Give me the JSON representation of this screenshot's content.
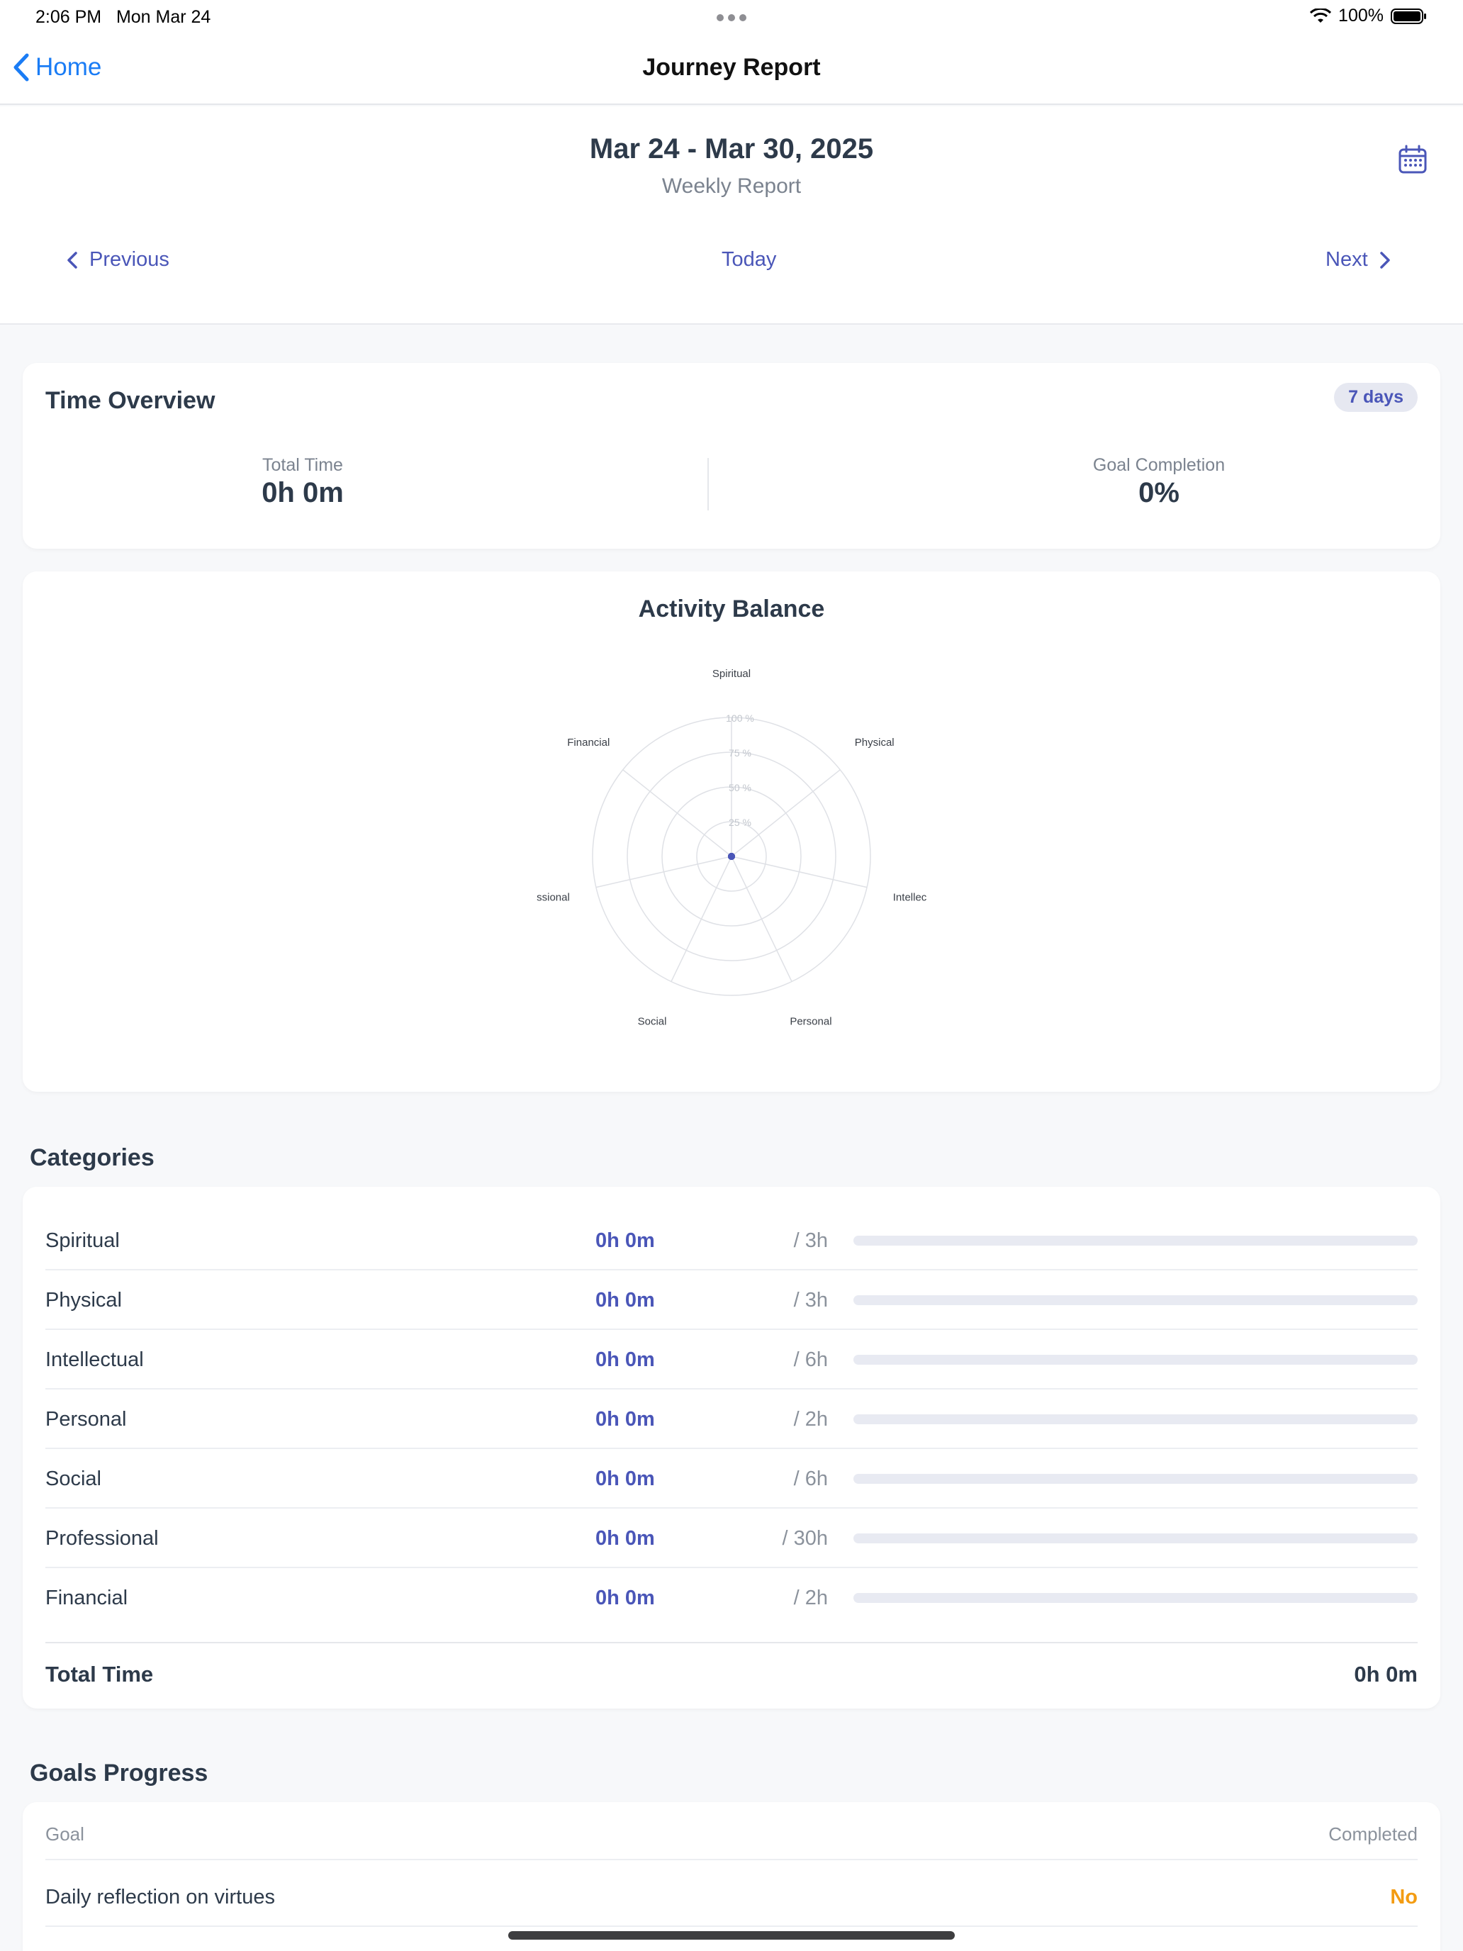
{
  "status_bar": {
    "time": "2:06 PM",
    "date": "Mon Mar 24",
    "battery": "100%"
  },
  "nav": {
    "back_label": "Home",
    "title": "Journey Report"
  },
  "header": {
    "date_range": "Mar 24 - Mar 30, 2025",
    "report_type": "Weekly Report",
    "prev_label": "Previous",
    "today_label": "Today",
    "next_label": "Next"
  },
  "overview": {
    "title": "Time Overview",
    "badge": "7 days",
    "total_time_label": "Total Time",
    "total_time_value": "0h 0m",
    "goal_completion_label": "Goal Completion",
    "goal_completion_value": "0%"
  },
  "balance": {
    "title": "Activity Balance"
  },
  "chart_data": {
    "type": "radar",
    "axes": [
      "Spiritual",
      "Physical",
      "Intellectual",
      "Personal",
      "Social",
      "Professional",
      "Financial"
    ],
    "axis_label_display": [
      "Spiritual",
      "Physical",
      "Intellec",
      "Personal",
      "Social",
      "ssional",
      "Financial"
    ],
    "values": [
      0,
      0,
      0,
      0,
      0,
      0,
      0
    ],
    "rlim": [
      0,
      100
    ],
    "ring_labels": [
      "25 %",
      "50 %",
      "75 %",
      "100 %"
    ],
    "ring_values": [
      25,
      50,
      75,
      100
    ],
    "color": "#4a56b8"
  },
  "categories": {
    "title": "Categories",
    "items": [
      {
        "name": "Spiritual",
        "time": "0h 0m",
        "goal": "/ 3h",
        "progress": 0
      },
      {
        "name": "Physical",
        "time": "0h 0m",
        "goal": "/ 3h",
        "progress": 0
      },
      {
        "name": "Intellectual",
        "time": "0h 0m",
        "goal": "/ 6h",
        "progress": 0
      },
      {
        "name": "Personal",
        "time": "0h 0m",
        "goal": "/ 2h",
        "progress": 0
      },
      {
        "name": "Social",
        "time": "0h 0m",
        "goal": "/ 6h",
        "progress": 0
      },
      {
        "name": "Professional",
        "time": "0h 0m",
        "goal": "/ 30h",
        "progress": 0
      },
      {
        "name": "Financial",
        "time": "0h 0m",
        "goal": "/ 2h",
        "progress": 0
      }
    ],
    "total_label": "Total Time",
    "total_value": "0h 0m"
  },
  "goals": {
    "title": "Goals Progress",
    "col_goal": "Goal",
    "col_completed": "Completed",
    "items": [
      {
        "name": "Daily reflection on virtues",
        "status": "No"
      }
    ]
  },
  "colors": {
    "accent": "#4a56b8",
    "link": "#1a7cf5",
    "warning": "#f39c12"
  }
}
